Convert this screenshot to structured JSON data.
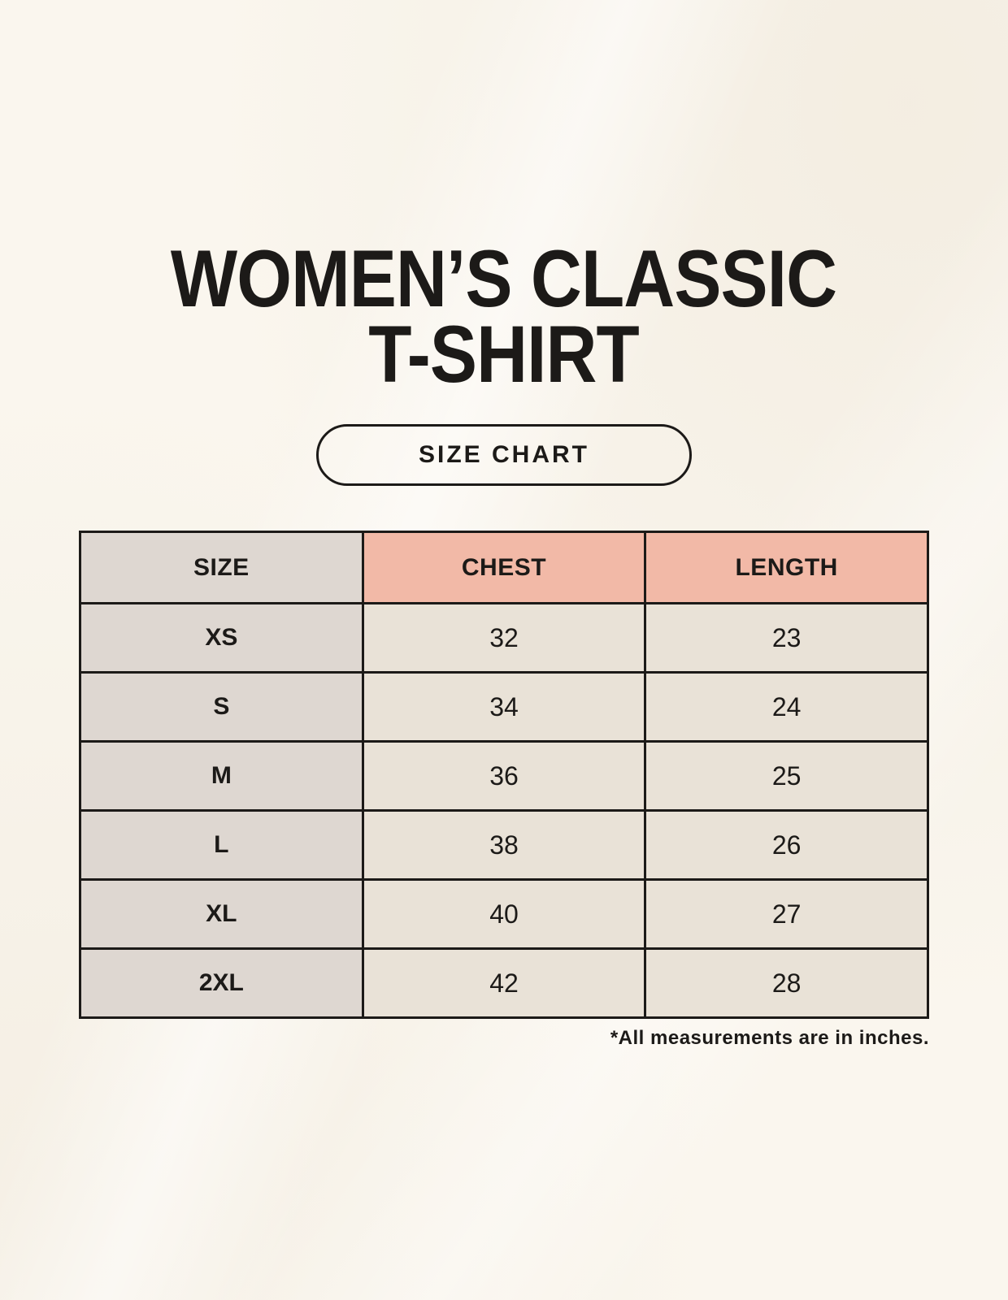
{
  "header": {
    "title_line1": "WOMEN’S CLASSIC",
    "title_line2": "T-SHIRT",
    "button_label": "SIZE CHART"
  },
  "chart_data": {
    "type": "table",
    "title": "WOMEN’S CLASSIC T-SHIRT — SIZE CHART",
    "columns": [
      "SIZE",
      "CHEST",
      "LENGTH"
    ],
    "rows": [
      [
        "XS",
        "32",
        "23"
      ],
      [
        "S",
        "34",
        "24"
      ],
      [
        "M",
        "36",
        "25"
      ],
      [
        "L",
        "38",
        "26"
      ],
      [
        "XL",
        "40",
        "27"
      ],
      [
        "2XL",
        "42",
        "28"
      ]
    ],
    "units": "inches"
  },
  "footer": {
    "footnote": "*All measurements are in inches."
  },
  "colors": {
    "background": "#faf6ee",
    "header_pink": "#f2b9a7",
    "taupe": "#ded7d1",
    "beige": "#e9e2d7",
    "border": "#1c1a18",
    "text": "#1c1a18"
  }
}
